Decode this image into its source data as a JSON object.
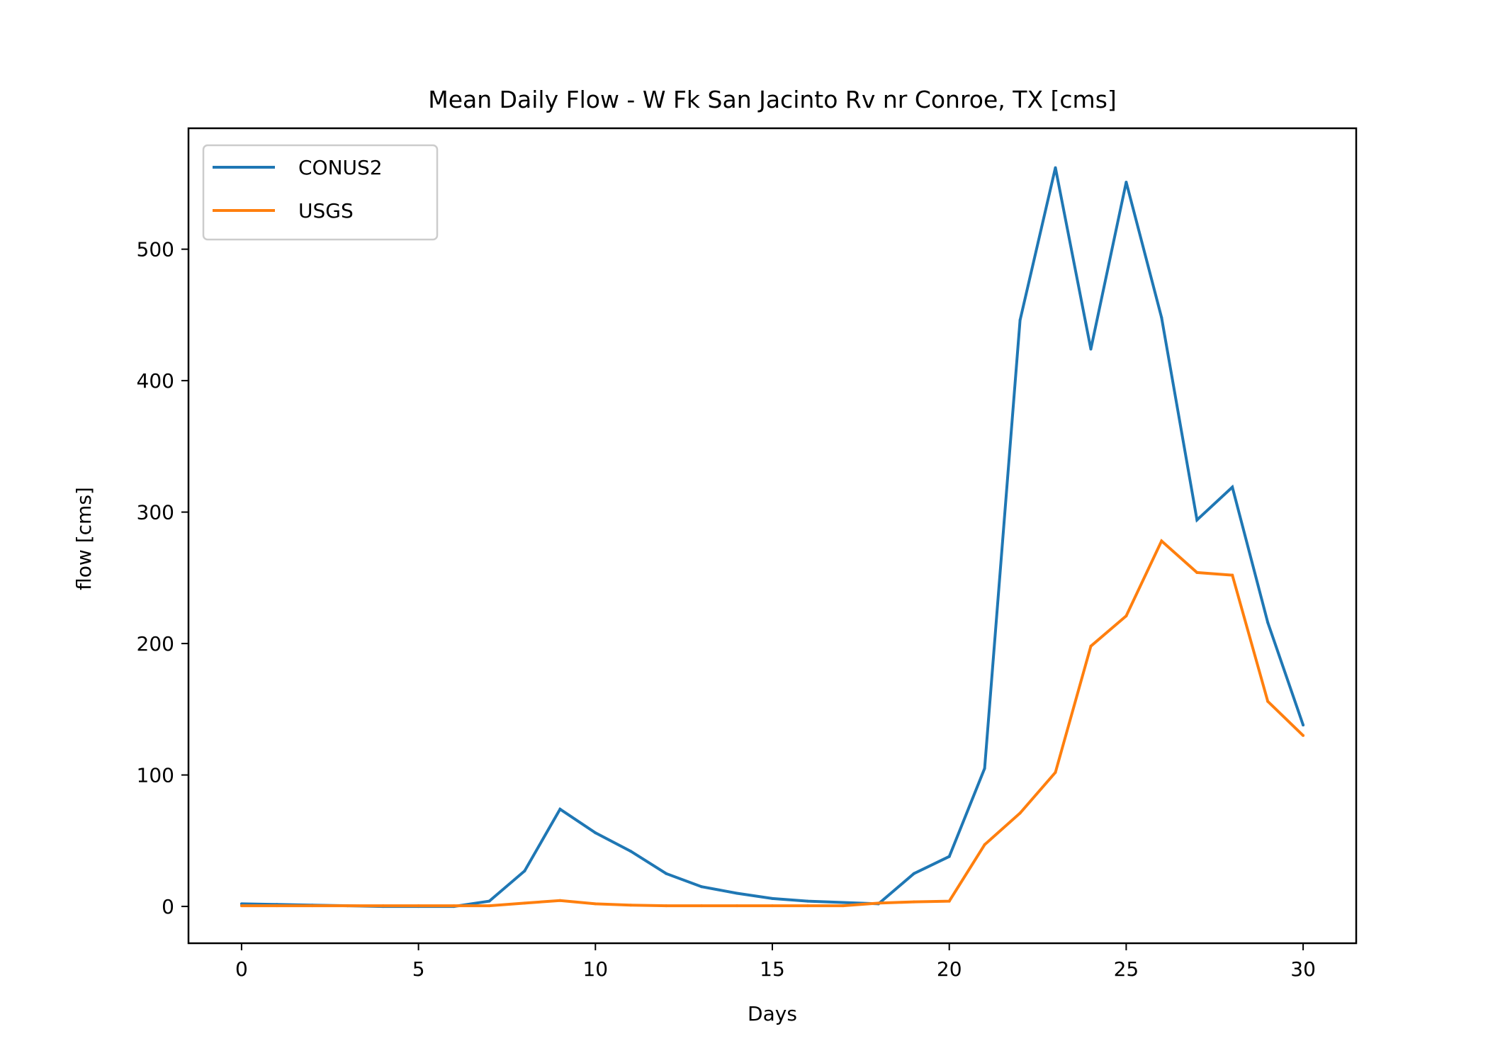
{
  "chart_data": {
    "type": "line",
    "title": "Mean Daily Flow - W Fk San Jacinto Rv nr Conroe, TX [cms]",
    "xlabel": "Days",
    "ylabel": "flow [cms]",
    "xlim": [
      -1.5,
      31.5
    ],
    "ylim": [
      -28,
      592
    ],
    "xticks": [
      0,
      5,
      10,
      15,
      20,
      25,
      30
    ],
    "yticks": [
      0,
      100,
      200,
      300,
      400,
      500
    ],
    "grid": false,
    "legend_position": "top-left",
    "x": [
      0,
      1,
      2,
      3,
      4,
      5,
      6,
      7,
      8,
      9,
      10,
      11,
      12,
      13,
      14,
      15,
      16,
      17,
      18,
      19,
      20,
      21,
      22,
      23,
      24,
      25,
      26,
      27,
      28,
      29,
      30
    ],
    "series": [
      {
        "name": "CONUS2",
        "color": "#1f77b4",
        "values": [
          2,
          1.5,
          1,
          0.5,
          0,
          0,
          0,
          4,
          27,
          74,
          56,
          42,
          25,
          15,
          10,
          6,
          4,
          3,
          2,
          25,
          38,
          105,
          446,
          562,
          424,
          551,
          448,
          294,
          319,
          216,
          138
        ]
      },
      {
        "name": "USGS",
        "color": "#ff7f0e",
        "values": [
          0.5,
          0.5,
          0.5,
          0.5,
          0.5,
          0.5,
          0.5,
          0.5,
          2.5,
          4.5,
          2,
          1,
          0.5,
          0.5,
          0.5,
          0.5,
          0.5,
          0.5,
          2.5,
          3.5,
          4,
          47,
          71,
          102,
          198,
          221,
          278,
          254,
          252,
          156,
          130
        ]
      }
    ]
  }
}
